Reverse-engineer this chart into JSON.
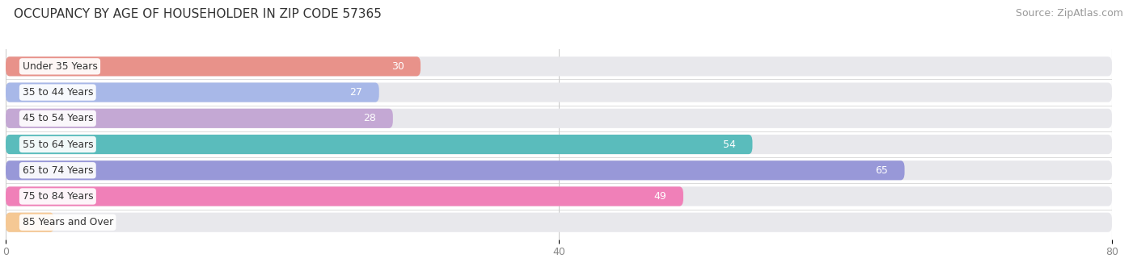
{
  "title": "OCCUPANCY BY AGE OF HOUSEHOLDER IN ZIP CODE 57365",
  "source": "Source: ZipAtlas.com",
  "categories": [
    "Under 35 Years",
    "35 to 44 Years",
    "45 to 54 Years",
    "55 to 64 Years",
    "65 to 74 Years",
    "75 to 84 Years",
    "85 Years and Over"
  ],
  "values": [
    30,
    27,
    28,
    54,
    65,
    49,
    0
  ],
  "bar_colors": [
    "#E8928A",
    "#A8B8E8",
    "#C4A8D4",
    "#5ABCBC",
    "#9898D8",
    "#F080B8",
    "#F5C894"
  ],
  "xlim": [
    0,
    80
  ],
  "xticks": [
    0,
    40,
    80
  ],
  "bar_bg_color": "#E8E8EC",
  "label_inside_color": "#ffffff",
  "label_outside_color": "#666666",
  "title_fontsize": 11,
  "source_fontsize": 9,
  "tick_fontsize": 9,
  "bar_height": 0.75,
  "fig_bg": "#ffffff"
}
